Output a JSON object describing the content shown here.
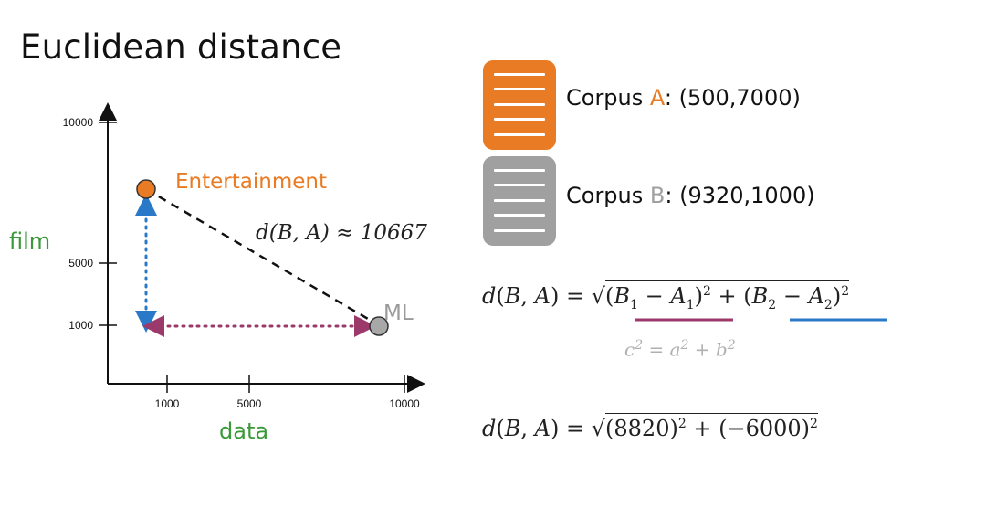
{
  "title": "Euclidean distance",
  "chart_data": {
    "type": "scatter",
    "xlabel": "data",
    "ylabel": "film",
    "x_ticks": [
      "1000",
      "5000",
      "10000"
    ],
    "y_ticks": [
      "10000",
      "5000",
      "1000"
    ],
    "points": [
      {
        "name": "Entertainment",
        "x": 500,
        "y": 7000,
        "color": "#e87b24"
      },
      {
        "name": "ML",
        "x": 9320,
        "y": 1000,
        "color": "#9a9a9a"
      }
    ],
    "annotation": "d(B, A) ≈ 10667"
  },
  "corpora": [
    {
      "prefix": "Corpus ",
      "letter": "A",
      "suffix": ": (500,7000)",
      "color": "#e87b24"
    },
    {
      "prefix": "Corpus ",
      "letter": "B",
      "suffix": ": (9320,1000)",
      "color": "#a0a0a0"
    }
  ],
  "colors": {
    "orange": "#e87b24",
    "grey": "#a0a0a0",
    "green": "#3a9a3a",
    "purple": "#9b3a6a",
    "blue": "#2a78c8"
  }
}
